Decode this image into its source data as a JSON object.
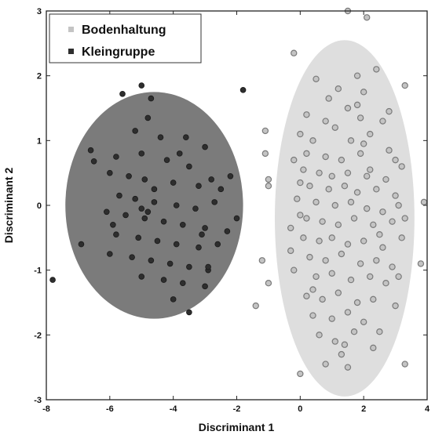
{
  "chart_data": {
    "type": "scatter",
    "xlabel": "Discriminant 1",
    "ylabel": "Discriminant 2",
    "xlim": [
      -8,
      4
    ],
    "ylim": [
      -3,
      3
    ],
    "x_ticks": [
      "-8",
      "-6",
      "-4",
      "-2",
      "0",
      "2",
      "4"
    ],
    "y_ticks": [
      "-3",
      "-2",
      "-1",
      "0",
      "1",
      "2",
      "3"
    ],
    "grid": false,
    "legend_position": "top-left",
    "colors": {
      "bodenhaltung_fill": "#c4c4c4",
      "bodenhaltung_edge": "#7a7a7a",
      "kleingruppe_fill": "#2e2e2e",
      "kleingruppe_edge": "#1a1a1a",
      "ellipse_bodenhaltung": "#dedede",
      "ellipse_kleingruppe": "#7b7b7b"
    },
    "ellipses": [
      {
        "series": "Kleingruppe",
        "cx": -4.6,
        "cy": 0.0,
        "rx": 2.8,
        "ry": 1.75
      },
      {
        "series": "Bodenhaltung",
        "cx": 1.4,
        "cy": -0.2,
        "rx": 2.2,
        "ry": 2.75
      }
    ],
    "series": [
      {
        "name": "Bodenhaltung",
        "points": [
          [
            1.5,
            3.0
          ],
          [
            2.1,
            2.9
          ],
          [
            -0.2,
            2.35
          ],
          [
            1.8,
            2.0
          ],
          [
            2.4,
            2.1
          ],
          [
            0.5,
            1.95
          ],
          [
            1.2,
            1.8
          ],
          [
            2.0,
            1.75
          ],
          [
            1.5,
            1.5
          ],
          [
            0.2,
            1.4
          ],
          [
            0.8,
            1.3
          ],
          [
            1.1,
            1.2
          ],
          [
            2.2,
            1.1
          ],
          [
            2.6,
            1.3
          ],
          [
            0.0,
            1.1
          ],
          [
            0.4,
            1.0
          ],
          [
            1.6,
            1.0
          ],
          [
            2.0,
            0.95
          ],
          [
            0.2,
            0.8
          ],
          [
            0.8,
            0.75
          ],
          [
            1.3,
            0.7
          ],
          [
            1.9,
            0.8
          ],
          [
            2.8,
            0.85
          ],
          [
            3.0,
            0.7
          ],
          [
            0.1,
            0.55
          ],
          [
            0.6,
            0.5
          ],
          [
            1.0,
            0.45
          ],
          [
            1.5,
            0.5
          ],
          [
            2.2,
            0.55
          ],
          [
            2.7,
            0.4
          ],
          [
            3.2,
            0.6
          ],
          [
            0.3,
            0.3
          ],
          [
            0.9,
            0.25
          ],
          [
            1.4,
            0.3
          ],
          [
            1.8,
            0.2
          ],
          [
            2.4,
            0.25
          ],
          [
            3.0,
            0.15
          ],
          [
            -0.1,
            0.1
          ],
          [
            0.5,
            0.05
          ],
          [
            1.1,
            0.0
          ],
          [
            1.6,
            0.05
          ],
          [
            2.1,
            -0.05
          ],
          [
            2.6,
            -0.1
          ],
          [
            3.1,
            0.0
          ],
          [
            0.2,
            -0.2
          ],
          [
            0.7,
            -0.25
          ],
          [
            1.2,
            -0.3
          ],
          [
            1.7,
            -0.2
          ],
          [
            2.3,
            -0.3
          ],
          [
            2.9,
            -0.25
          ],
          [
            3.3,
            -0.2
          ],
          [
            -0.3,
            -0.35
          ],
          [
            0.1,
            -0.5
          ],
          [
            0.6,
            -0.55
          ],
          [
            1.0,
            -0.5
          ],
          [
            1.5,
            -0.6
          ],
          [
            2.0,
            -0.55
          ],
          [
            2.6,
            -0.65
          ],
          [
            3.2,
            -0.5
          ],
          [
            0.3,
            -0.8
          ],
          [
            0.8,
            -0.85
          ],
          [
            1.3,
            -0.75
          ],
          [
            1.9,
            -0.9
          ],
          [
            2.4,
            -0.85
          ],
          [
            2.9,
            -0.95
          ],
          [
            -0.2,
            -1.0
          ],
          [
            0.5,
            -1.1
          ],
          [
            1.0,
            -1.05
          ],
          [
            1.6,
            -1.15
          ],
          [
            2.2,
            -1.1
          ],
          [
            2.7,
            -1.2
          ],
          [
            3.1,
            -1.1
          ],
          [
            0.2,
            -1.4
          ],
          [
            0.7,
            -1.45
          ],
          [
            1.2,
            -1.35
          ],
          [
            1.8,
            -1.5
          ],
          [
            2.3,
            -1.45
          ],
          [
            0.4,
            -1.7
          ],
          [
            1.0,
            -1.75
          ],
          [
            1.5,
            -1.65
          ],
          [
            2.0,
            -1.8
          ],
          [
            0.6,
            -2.0
          ],
          [
            1.1,
            -2.1
          ],
          [
            1.7,
            -1.95
          ],
          [
            2.5,
            -1.95
          ],
          [
            1.3,
            -2.3
          ],
          [
            -1.0,
            -1.2
          ],
          [
            -1.2,
            -0.85
          ],
          [
            -1.0,
            0.3
          ],
          [
            -1.1,
            0.8
          ],
          [
            -1.1,
            1.15
          ],
          [
            -1.4,
            -1.55
          ],
          [
            3.9,
            0.05
          ],
          [
            3.8,
            -0.9
          ],
          [
            3.3,
            -2.45
          ],
          [
            3.3,
            1.85
          ],
          [
            1.5,
            -2.5
          ],
          [
            0.8,
            -2.45
          ],
          [
            2.3,
            -2.2
          ],
          [
            0.0,
            -2.6
          ],
          [
            -1.0,
            0.4
          ],
          [
            0.0,
            0.35
          ],
          [
            -0.2,
            0.7
          ],
          [
            -0.3,
            -0.7
          ],
          [
            1.9,
            1.35
          ],
          [
            1.8,
            1.55
          ],
          [
            0.9,
            1.65
          ],
          [
            2.1,
            0.45
          ],
          [
            0.4,
            -1.3
          ],
          [
            2.5,
            -0.45
          ],
          [
            0.0,
            -0.15
          ],
          [
            3.0,
            -1.55
          ],
          [
            1.4,
            -2.15
          ],
          [
            2.8,
            1.45
          ]
        ]
      },
      {
        "name": "Kleingruppe",
        "points": [
          [
            -5.0,
            1.85
          ],
          [
            -4.7,
            1.65
          ],
          [
            -5.6,
            1.72
          ],
          [
            -1.8,
            1.78
          ],
          [
            -6.6,
            0.85
          ],
          [
            -6.5,
            0.68
          ],
          [
            -4.8,
            1.35
          ],
          [
            -5.2,
            1.15
          ],
          [
            -4.4,
            1.05
          ],
          [
            -3.6,
            1.05
          ],
          [
            -3.0,
            0.9
          ],
          [
            -5.8,
            0.75
          ],
          [
            -5.0,
            0.8
          ],
          [
            -4.2,
            0.7
          ],
          [
            -3.5,
            0.6
          ],
          [
            -6.0,
            0.5
          ],
          [
            -5.4,
            0.45
          ],
          [
            -4.9,
            0.4
          ],
          [
            -4.0,
            0.35
          ],
          [
            -3.2,
            0.3
          ],
          [
            -2.5,
            0.25
          ],
          [
            -5.7,
            0.15
          ],
          [
            -5.2,
            0.1
          ],
          [
            -4.6,
            0.05
          ],
          [
            -3.9,
            0.0
          ],
          [
            -3.3,
            -0.05
          ],
          [
            -2.7,
            0.05
          ],
          [
            -6.1,
            -0.1
          ],
          [
            -5.5,
            -0.15
          ],
          [
            -4.9,
            -0.2
          ],
          [
            -4.3,
            -0.25
          ],
          [
            -3.7,
            -0.3
          ],
          [
            -3.0,
            -0.35
          ],
          [
            -2.3,
            -0.4
          ],
          [
            -5.8,
            -0.45
          ],
          [
            -5.1,
            -0.5
          ],
          [
            -4.5,
            -0.55
          ],
          [
            -3.9,
            -0.6
          ],
          [
            -3.2,
            -0.65
          ],
          [
            -2.6,
            -0.6
          ],
          [
            -6.0,
            -0.75
          ],
          [
            -5.3,
            -0.8
          ],
          [
            -4.7,
            -0.85
          ],
          [
            -4.1,
            -0.9
          ],
          [
            -3.5,
            -0.95
          ],
          [
            -2.9,
            -1.0
          ],
          [
            -5.0,
            -1.1
          ],
          [
            -4.3,
            -1.15
          ],
          [
            -3.7,
            -1.2
          ],
          [
            -3.0,
            -1.25
          ],
          [
            -4.0,
            -1.45
          ],
          [
            -3.5,
            -1.65
          ],
          [
            -7.8,
            -1.15
          ],
          [
            -6.9,
            -0.6
          ],
          [
            -2.0,
            -0.2
          ],
          [
            -2.2,
            0.45
          ],
          [
            -2.9,
            -0.95
          ],
          [
            -4.8,
            -0.1
          ],
          [
            -5.0,
            -0.05
          ],
          [
            -3.8,
            0.8
          ],
          [
            -2.8,
            0.4
          ],
          [
            -4.6,
            0.25
          ],
          [
            -5.9,
            -0.3
          ],
          [
            -3.1,
            -0.45
          ]
        ]
      }
    ]
  },
  "legend": {
    "items": [
      {
        "label": "Bodenhaltung",
        "color": "#c4c4c4"
      },
      {
        "label": "Kleingruppe",
        "color": "#2e2e2e"
      }
    ]
  }
}
